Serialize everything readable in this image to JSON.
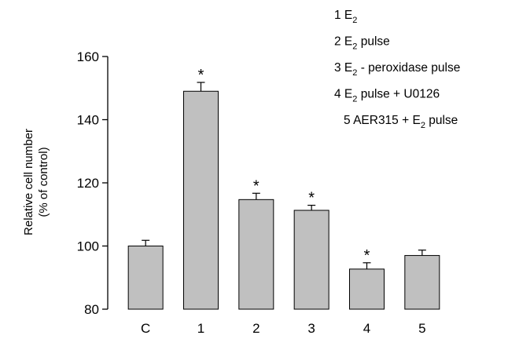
{
  "chart_data": {
    "type": "bar",
    "categories": [
      "C",
      "1",
      "2",
      "3",
      "4",
      "5"
    ],
    "values": [
      100,
      149,
      114.7,
      111.3,
      92.7,
      97
    ],
    "errors": [
      1.8,
      2.8,
      2.0,
      1.6,
      2.0,
      1.7
    ],
    "significance": [
      "",
      "*",
      "*",
      "*",
      "*",
      ""
    ],
    "ylabel_line1": "Relative cell number",
    "ylabel_line2": "(% of control)",
    "xlabel": "",
    "title": "",
    "ylim": [
      80,
      160
    ],
    "yticks": [
      80,
      100,
      120,
      140,
      160
    ],
    "grid": false,
    "bar_color": "#c0c0c0",
    "legend_position": "top-right",
    "legend": [
      {
        "num": "1",
        "pre": "E",
        "sub": "2",
        "post": ""
      },
      {
        "num": "2",
        "pre": "E",
        "sub": "2",
        "post": " pulse"
      },
      {
        "num": "3",
        "pre": "E",
        "sub": "2",
        "post": " - peroxidase pulse"
      },
      {
        "num": "4",
        "pre": "E",
        "sub": "2",
        "post": " pulse + U0126"
      },
      {
        "num": "5",
        "pre": "AER315 + E",
        "sub": "2",
        "post": " pulse"
      }
    ]
  }
}
